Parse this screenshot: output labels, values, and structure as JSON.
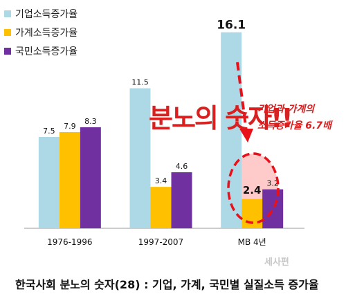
{
  "chart_data": {
    "type": "bar",
    "categories": [
      "1976-1996",
      "1997-2007",
      "MB 4년"
    ],
    "series": [
      {
        "name": "기업소득증가율",
        "color": "#add8e6",
        "values": [
          7.5,
          11.5,
          16.1
        ]
      },
      {
        "name": "가계소득증가율",
        "color": "#ffc000",
        "values": [
          7.9,
          3.4,
          2.4
        ]
      },
      {
        "name": "국민소득증가율",
        "color": "#7030a0",
        "values": [
          8.3,
          4.6,
          3.2
        ]
      }
    ],
    "ylim": [
      0,
      17.5
    ],
    "grid": false,
    "legend_position": "top-left"
  },
  "annotations": {
    "headline": "분노의 숫자!!",
    "note_line1": "기업과 가계의",
    "note_line2": "소득증가율 6.7배"
  },
  "caption": "한국사회 분노의 숫자(28) :  기업, 가계, 국민별  실질소득 증가율",
  "watermark": "세사편",
  "colors": {
    "highlight": "#e8111a",
    "headline": "#d92020"
  }
}
